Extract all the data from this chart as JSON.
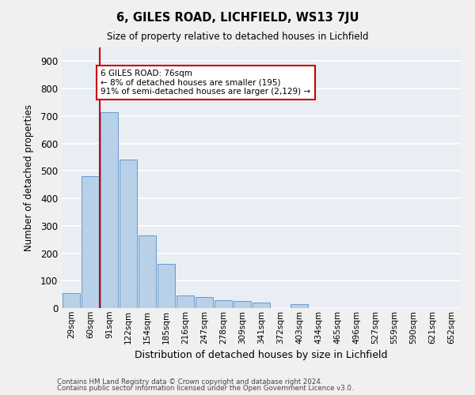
{
  "title1": "6, GILES ROAD, LICHFIELD, WS13 7JU",
  "title2": "Size of property relative to detached houses in Lichfield",
  "xlabel": "Distribution of detached houses by size in Lichfield",
  "ylabel": "Number of detached properties",
  "categories": [
    "29sqm",
    "60sqm",
    "91sqm",
    "122sqm",
    "154sqm",
    "185sqm",
    "216sqm",
    "247sqm",
    "278sqm",
    "309sqm",
    "341sqm",
    "372sqm",
    "403sqm",
    "434sqm",
    "465sqm",
    "496sqm",
    "527sqm",
    "559sqm",
    "590sqm",
    "621sqm",
    "652sqm"
  ],
  "values": [
    55,
    480,
    715,
    540,
    265,
    160,
    45,
    40,
    30,
    25,
    20,
    0,
    15,
    0,
    0,
    0,
    0,
    0,
    0,
    0,
    0
  ],
  "bar_color": "#b8d0e8",
  "bar_edge_color": "#6699cc",
  "annotation_line1": "6 GILES ROAD: 76sqm",
  "annotation_line2": "← 8% of detached houses are smaller (195)",
  "annotation_line3": "91% of semi-detached houses are larger (2,129) →",
  "vline_color": "#cc0000",
  "annotation_box_facecolor": "#ffffff",
  "annotation_box_edgecolor": "#cc0000",
  "ylim": [
    0,
    950
  ],
  "yticks": [
    0,
    100,
    200,
    300,
    400,
    500,
    600,
    700,
    800,
    900
  ],
  "background_color": "#e8eef4",
  "grid_color": "#ffffff",
  "footer1": "Contains HM Land Registry data © Crown copyright and database right 2024.",
  "footer2": "Contains public sector information licensed under the Open Government Licence v3.0."
}
